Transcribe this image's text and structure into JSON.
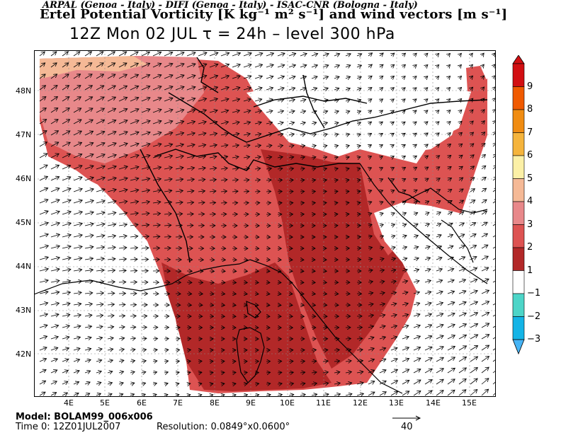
{
  "header": {
    "institutions": "ARPAL (Genoa - Italy)  -  DIFI (Genoa - Italy)  -  ISAC-CNR (Bologna - Italy)",
    "title": "Ertel Potential Vorticity [K kg⁻¹ m² s⁻¹] and wind vectors [m s⁻¹]",
    "subtitle": "12Z Mon 02 JUL   τ = 24h   –   level 300 hPa"
  },
  "map": {
    "lat_labels": [
      "48N",
      "47N",
      "46N",
      "45N",
      "44N",
      "43N",
      "42N"
    ],
    "lon_labels": [
      "4E",
      "5E",
      "6E",
      "7E",
      "8E",
      "9E",
      "10E",
      "11E",
      "12E",
      "13E",
      "14E",
      "15E"
    ]
  },
  "colorbar": {
    "labels": [
      "9",
      "8",
      "7",
      "6",
      "5",
      "4",
      "3",
      "2",
      "1",
      "−1",
      "−2",
      "−3"
    ],
    "colors": [
      "#d20f12",
      "#f05a00",
      "#f08c12",
      "#f5b43c",
      "#fcf0a6",
      "#f5b996",
      "#e8888a",
      "#dd5352",
      "#b22828",
      "#ffffff",
      "#4dd5c8",
      "#14b4e6",
      "#46b4f5"
    ]
  },
  "footer": {
    "model": "Model: BOLAM99_006x006",
    "time": "Time 0:  12Z01JUL2007",
    "resolution": "Resolution:  0.0849°x0.0600°",
    "vector_ref": "40"
  }
}
